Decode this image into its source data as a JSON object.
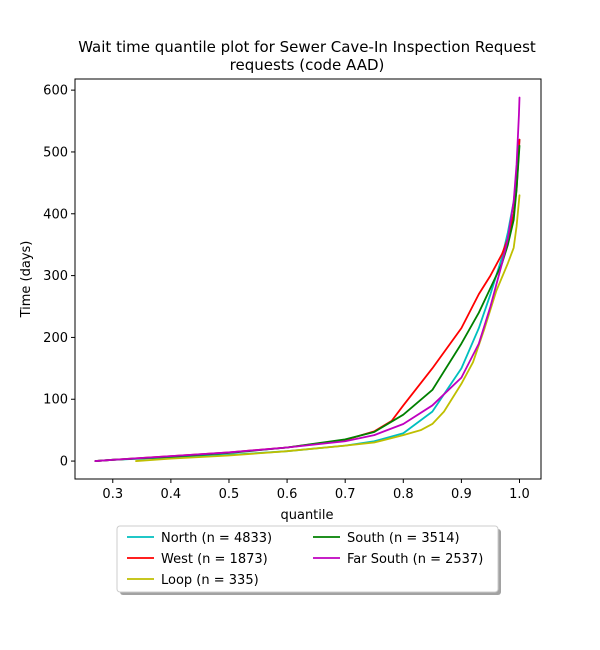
{
  "chart_data": {
    "type": "line",
    "title_line1": "Wait time quantile plot for Sewer Cave-In Inspection Request",
    "title_line2": "requests (code AAD)",
    "xlabel": "quantile",
    "ylabel": "Time (days)",
    "xlim": [
      0.235,
      1.037
    ],
    "ylim": [
      -29,
      618
    ],
    "x_ticks": [
      0.3,
      0.4,
      0.5,
      0.6,
      0.7,
      0.8,
      0.9,
      1.0
    ],
    "x_tick_labels": [
      "0.3",
      "0.4",
      "0.5",
      "0.6",
      "0.7",
      "0.8",
      "0.9",
      "1.0"
    ],
    "y_ticks": [
      0,
      100,
      200,
      300,
      400,
      500,
      600
    ],
    "y_tick_labels": [
      "0",
      "100",
      "200",
      "300",
      "400",
      "500",
      "600"
    ],
    "grid": false,
    "legend_placement": "below-center",
    "series": [
      {
        "name": "North (n = 4833)",
        "color": "#00bfbf",
        "points": [
          [
            0.27,
            0
          ],
          [
            0.3,
            2
          ],
          [
            0.4,
            6
          ],
          [
            0.5,
            10
          ],
          [
            0.6,
            16
          ],
          [
            0.7,
            25
          ],
          [
            0.75,
            32
          ],
          [
            0.8,
            45
          ],
          [
            0.85,
            80
          ],
          [
            0.9,
            150
          ],
          [
            0.93,
            215
          ],
          [
            0.95,
            270
          ],
          [
            0.97,
            330
          ],
          [
            0.98,
            370
          ],
          [
            0.99,
            420
          ],
          [
            0.995,
            460
          ],
          [
            1.0,
            520
          ]
        ]
      },
      {
        "name": "West (n = 1873)",
        "color": "#ff0000",
        "points": [
          [
            0.27,
            0
          ],
          [
            0.3,
            2
          ],
          [
            0.4,
            8
          ],
          [
            0.5,
            14
          ],
          [
            0.6,
            22
          ],
          [
            0.7,
            34
          ],
          [
            0.75,
            48
          ],
          [
            0.78,
            65
          ],
          [
            0.8,
            90
          ],
          [
            0.85,
            150
          ],
          [
            0.9,
            215
          ],
          [
            0.93,
            270
          ],
          [
            0.95,
            300
          ],
          [
            0.97,
            335
          ],
          [
            0.98,
            360
          ],
          [
            0.99,
            400
          ],
          [
            0.995,
            440
          ],
          [
            1.0,
            520
          ]
        ]
      },
      {
        "name": "Loop (n = 335)",
        "color": "#bfbf00",
        "points": [
          [
            0.34,
            0
          ],
          [
            0.4,
            4
          ],
          [
            0.5,
            9
          ],
          [
            0.6,
            16
          ],
          [
            0.7,
            25
          ],
          [
            0.75,
            30
          ],
          [
            0.8,
            42
          ],
          [
            0.83,
            50
          ],
          [
            0.85,
            60
          ],
          [
            0.87,
            80
          ],
          [
            0.9,
            125
          ],
          [
            0.92,
            160
          ],
          [
            0.94,
            215
          ],
          [
            0.96,
            275
          ],
          [
            0.98,
            320
          ],
          [
            0.99,
            345
          ],
          [
            0.995,
            380
          ],
          [
            1.0,
            430
          ]
        ]
      },
      {
        "name": "South (n = 3514)",
        "color": "#008000",
        "points": [
          [
            0.27,
            0
          ],
          [
            0.3,
            2
          ],
          [
            0.4,
            7
          ],
          [
            0.5,
            13
          ],
          [
            0.6,
            22
          ],
          [
            0.7,
            35
          ],
          [
            0.75,
            47
          ],
          [
            0.8,
            75
          ],
          [
            0.85,
            115
          ],
          [
            0.9,
            190
          ],
          [
            0.93,
            240
          ],
          [
            0.95,
            280
          ],
          [
            0.97,
            320
          ],
          [
            0.98,
            350
          ],
          [
            0.99,
            390
          ],
          [
            0.995,
            440
          ],
          [
            1.0,
            510
          ]
        ]
      },
      {
        "name": "Far South (n = 2537)",
        "color": "#bf00bf",
        "points": [
          [
            0.27,
            0
          ],
          [
            0.3,
            2
          ],
          [
            0.4,
            8
          ],
          [
            0.5,
            14
          ],
          [
            0.6,
            22
          ],
          [
            0.7,
            32
          ],
          [
            0.75,
            42
          ],
          [
            0.8,
            60
          ],
          [
            0.85,
            90
          ],
          [
            0.9,
            135
          ],
          [
            0.93,
            190
          ],
          [
            0.95,
            250
          ],
          [
            0.97,
            320
          ],
          [
            0.98,
            360
          ],
          [
            0.99,
            420
          ],
          [
            0.995,
            480
          ],
          [
            0.999,
            560
          ],
          [
            1.0,
            588
          ]
        ]
      }
    ]
  }
}
